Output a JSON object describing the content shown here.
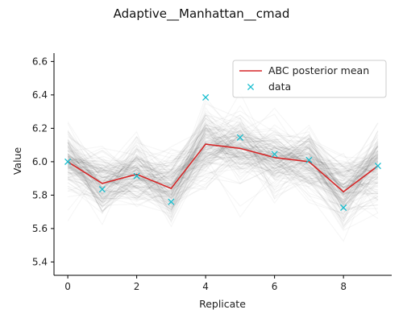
{
  "chart_data": {
    "type": "line",
    "title": "Adaptive__Manhattan__cmad",
    "xlabel": "Replicate",
    "ylabel": "Value",
    "xlim": [
      -0.4,
      9.4
    ],
    "ylim": [
      5.32,
      6.65
    ],
    "x_ticks": [
      0,
      2,
      4,
      6,
      8
    ],
    "y_ticks": [
      5.4,
      5.6,
      5.8,
      6.0,
      6.2,
      6.4,
      6.6
    ],
    "grid": false,
    "legend": "top-right",
    "x": [
      0,
      1,
      2,
      3,
      4,
      5,
      6,
      7,
      8,
      9
    ],
    "series": [
      {
        "name": "ABC posterior mean",
        "style": "line",
        "color": "#d62728",
        "values": [
          6.0,
          5.87,
          5.925,
          5.84,
          6.105,
          6.08,
          6.025,
          6.0,
          5.82,
          5.975
        ]
      },
      {
        "name": "data",
        "style": "marker-x",
        "color": "#17becf",
        "values": [
          6.0,
          5.835,
          5.915,
          5.76,
          6.385,
          6.145,
          6.045,
          6.01,
          5.725,
          5.975
        ]
      }
    ],
    "posterior_band": {
      "color": "#000000",
      "spread": [
        0.12,
        0.11,
        0.11,
        0.12,
        0.14,
        0.12,
        0.11,
        0.11,
        0.12,
        0.13
      ]
    }
  }
}
